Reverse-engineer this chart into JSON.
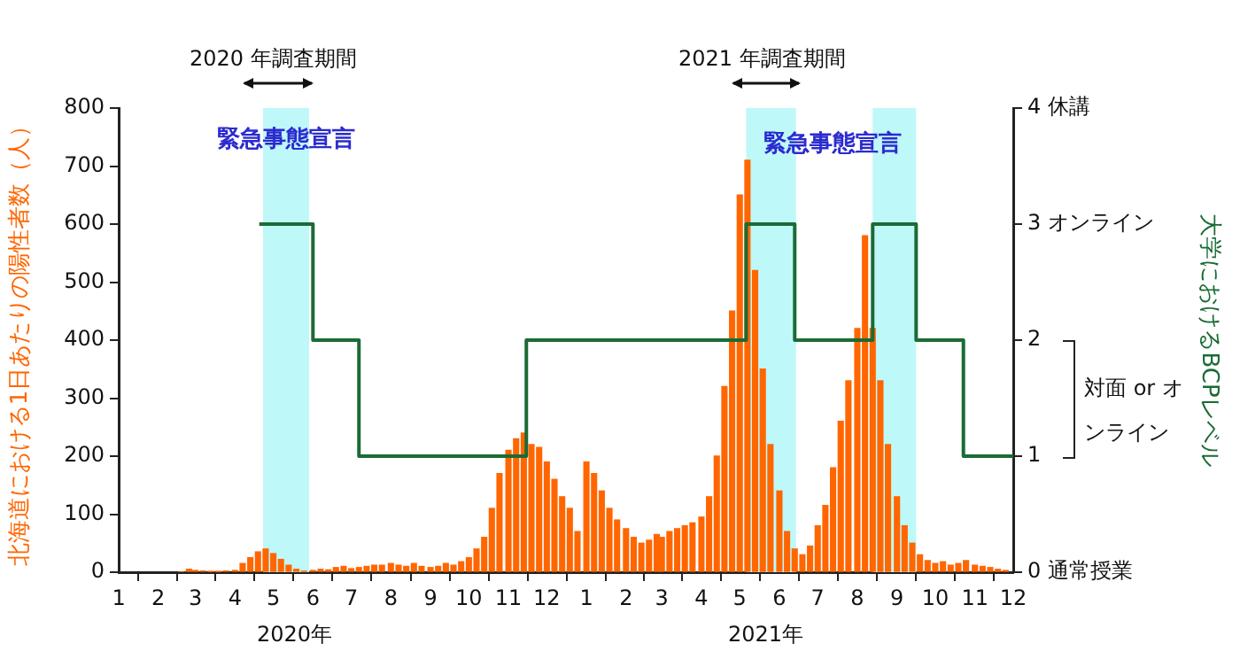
{
  "chart_data": {
    "type": "bar",
    "ylabel": "北海道における1日あたりの陽性者数（人）",
    "y2label": "大学におけるBCPレベル",
    "xlim": [
      "2020-01-01",
      "2021-12-01"
    ],
    "xticks": [
      {
        "value": "2020-01-01",
        "label": "1"
      },
      {
        "value": "2020-02-01",
        "label": "2"
      },
      {
        "value": "2020-03-01",
        "label": "3"
      },
      {
        "value": "2020-04-01",
        "label": "4"
      },
      {
        "value": "2020-05-01",
        "label": "5"
      },
      {
        "value": "2020-06-01",
        "label": "6"
      },
      {
        "value": "2020-07-01",
        "label": "7"
      },
      {
        "value": "2020-08-01",
        "label": "8"
      },
      {
        "value": "2020-09-01",
        "label": "9"
      },
      {
        "value": "2020-10-01",
        "label": "10"
      },
      {
        "value": "2020-11-01",
        "label": "11"
      },
      {
        "value": "2020-12-01",
        "label": "12"
      },
      {
        "value": "2021-01-01",
        "label": "1"
      },
      {
        "value": "2021-02-01",
        "label": "2"
      },
      {
        "value": "2021-03-01",
        "label": "3"
      },
      {
        "value": "2021-04-01",
        "label": "4"
      },
      {
        "value": "2021-05-01",
        "label": "5"
      },
      {
        "value": "2021-06-01",
        "label": "6"
      },
      {
        "value": "2021-07-01",
        "label": "7"
      },
      {
        "value": "2021-08-01",
        "label": "8"
      },
      {
        "value": "2021-09-01",
        "label": "9"
      },
      {
        "value": "2021-10-01",
        "label": "10"
      },
      {
        "value": "2021-11-01",
        "label": "11"
      },
      {
        "value": "2021-12-01",
        "label": "12"
      }
    ],
    "ylim": [
      0,
      800
    ],
    "yticks": [
      0,
      100,
      200,
      300,
      400,
      500,
      600,
      700,
      800
    ],
    "y2lim": [
      0,
      4
    ],
    "y2ticks": [
      {
        "value": 0,
        "label": "0 通常授業"
      },
      {
        "value": 1,
        "label": "1"
      },
      {
        "value": 2,
        "label": "2"
      },
      {
        "value": 3,
        "label": "3 オンライン"
      },
      {
        "value": 4,
        "label": "4 休講"
      }
    ],
    "grid": false,
    "legend": false,
    "series": [
      {
        "color": "#ff6600",
        "x": [
          "2020-02-19",
          "2020-02-25",
          "2020-03-01",
          "2020-03-07",
          "2020-03-13",
          "2020-03-19",
          "2020-03-25",
          "2020-04-01",
          "2020-04-07",
          "2020-04-13",
          "2020-04-19",
          "2020-04-25",
          "2020-05-01",
          "2020-05-07",
          "2020-05-13",
          "2020-05-19",
          "2020-05-25",
          "2020-06-01",
          "2020-06-07",
          "2020-06-13",
          "2020-06-19",
          "2020-06-25",
          "2020-07-01",
          "2020-07-07",
          "2020-07-13",
          "2020-07-19",
          "2020-07-25",
          "2020-08-01",
          "2020-08-07",
          "2020-08-13",
          "2020-08-19",
          "2020-08-25",
          "2020-09-01",
          "2020-09-07",
          "2020-09-13",
          "2020-09-19",
          "2020-09-25",
          "2020-10-01",
          "2020-10-07",
          "2020-10-13",
          "2020-10-19",
          "2020-10-25",
          "2020-11-01",
          "2020-11-07",
          "2020-11-13",
          "2020-11-19",
          "2020-11-25",
          "2020-12-01",
          "2020-12-07",
          "2020-12-13",
          "2020-12-19",
          "2020-12-25",
          "2021-01-01",
          "2021-01-07",
          "2021-01-13",
          "2021-01-19",
          "2021-01-25",
          "2021-02-01",
          "2021-02-07",
          "2021-02-13",
          "2021-02-19",
          "2021-02-25",
          "2021-03-01",
          "2021-03-07",
          "2021-03-13",
          "2021-03-19",
          "2021-03-25",
          "2021-04-01",
          "2021-04-07",
          "2021-04-13",
          "2021-04-19",
          "2021-04-25",
          "2021-05-01",
          "2021-05-07",
          "2021-05-13",
          "2021-05-19",
          "2021-05-25",
          "2021-06-01",
          "2021-06-07",
          "2021-06-13",
          "2021-06-19",
          "2021-06-25",
          "2021-07-01",
          "2021-07-07",
          "2021-07-13",
          "2021-07-19",
          "2021-07-25",
          "2021-08-01",
          "2021-08-07",
          "2021-08-13",
          "2021-08-19",
          "2021-08-25",
          "2021-09-01",
          "2021-09-07",
          "2021-09-13",
          "2021-09-19",
          "2021-09-25",
          "2021-10-01",
          "2021-10-07",
          "2021-10-13",
          "2021-10-19",
          "2021-10-25",
          "2021-11-01",
          "2021-11-07",
          "2021-11-13",
          "2021-11-19",
          "2021-11-25"
        ],
        "values": [
          0,
          5,
          3,
          2,
          1,
          1,
          2,
          3,
          15,
          25,
          35,
          40,
          32,
          22,
          12,
          5,
          2,
          3,
          5,
          4,
          8,
          10,
          6,
          8,
          10,
          12,
          12,
          15,
          12,
          10,
          15,
          10,
          8,
          10,
          15,
          12,
          18,
          25,
          40,
          60,
          110,
          170,
          210,
          230,
          240,
          220,
          215,
          190,
          160,
          130,
          110,
          70,
          190,
          170,
          140,
          110,
          90,
          75,
          60,
          50,
          55,
          65,
          60,
          70,
          75,
          80,
          85,
          95,
          130,
          200,
          320,
          450,
          650,
          710,
          520,
          350,
          220,
          140,
          70,
          40,
          30,
          45,
          80,
          115,
          180,
          260,
          330,
          420,
          580,
          420,
          330,
          220,
          130,
          80,
          50,
          30,
          20,
          15,
          18,
          12,
          15,
          20,
          12,
          10,
          8,
          5,
          3
        ]
      },
      {
        "type": "step",
        "axis": "y2",
        "color": "#1a6b35",
        "x": [
          "2020-04-20",
          "2020-06-01",
          "2020-07-07",
          "2020-11-15",
          "2021-05-06",
          "2021-06-13",
          "2021-08-13",
          "2021-09-16",
          "2021-10-23",
          "2021-12-01"
        ],
        "values": [
          3,
          2,
          1,
          2,
          3,
          2,
          3,
          2,
          1,
          1
        ]
      }
    ],
    "bands": [
      {
        "axis": "x",
        "from": "2020-04-23",
        "to": "2020-05-29",
        "label": "緊急事態宣言",
        "color": "#bff8f8"
      },
      {
        "axis": "x",
        "from": "2021-05-06",
        "to": "2021-06-14",
        "color": "#bff8f8"
      },
      {
        "axis": "x",
        "from": "2021-08-13",
        "to": "2021-09-16",
        "color": "#bff8f8"
      }
    ],
    "annotations": [
      "2020 年調査期間",
      "2021 年調査期間",
      "対面 or オンライン",
      "2020年",
      "2021年",
      "緊急事態宣言"
    ]
  }
}
